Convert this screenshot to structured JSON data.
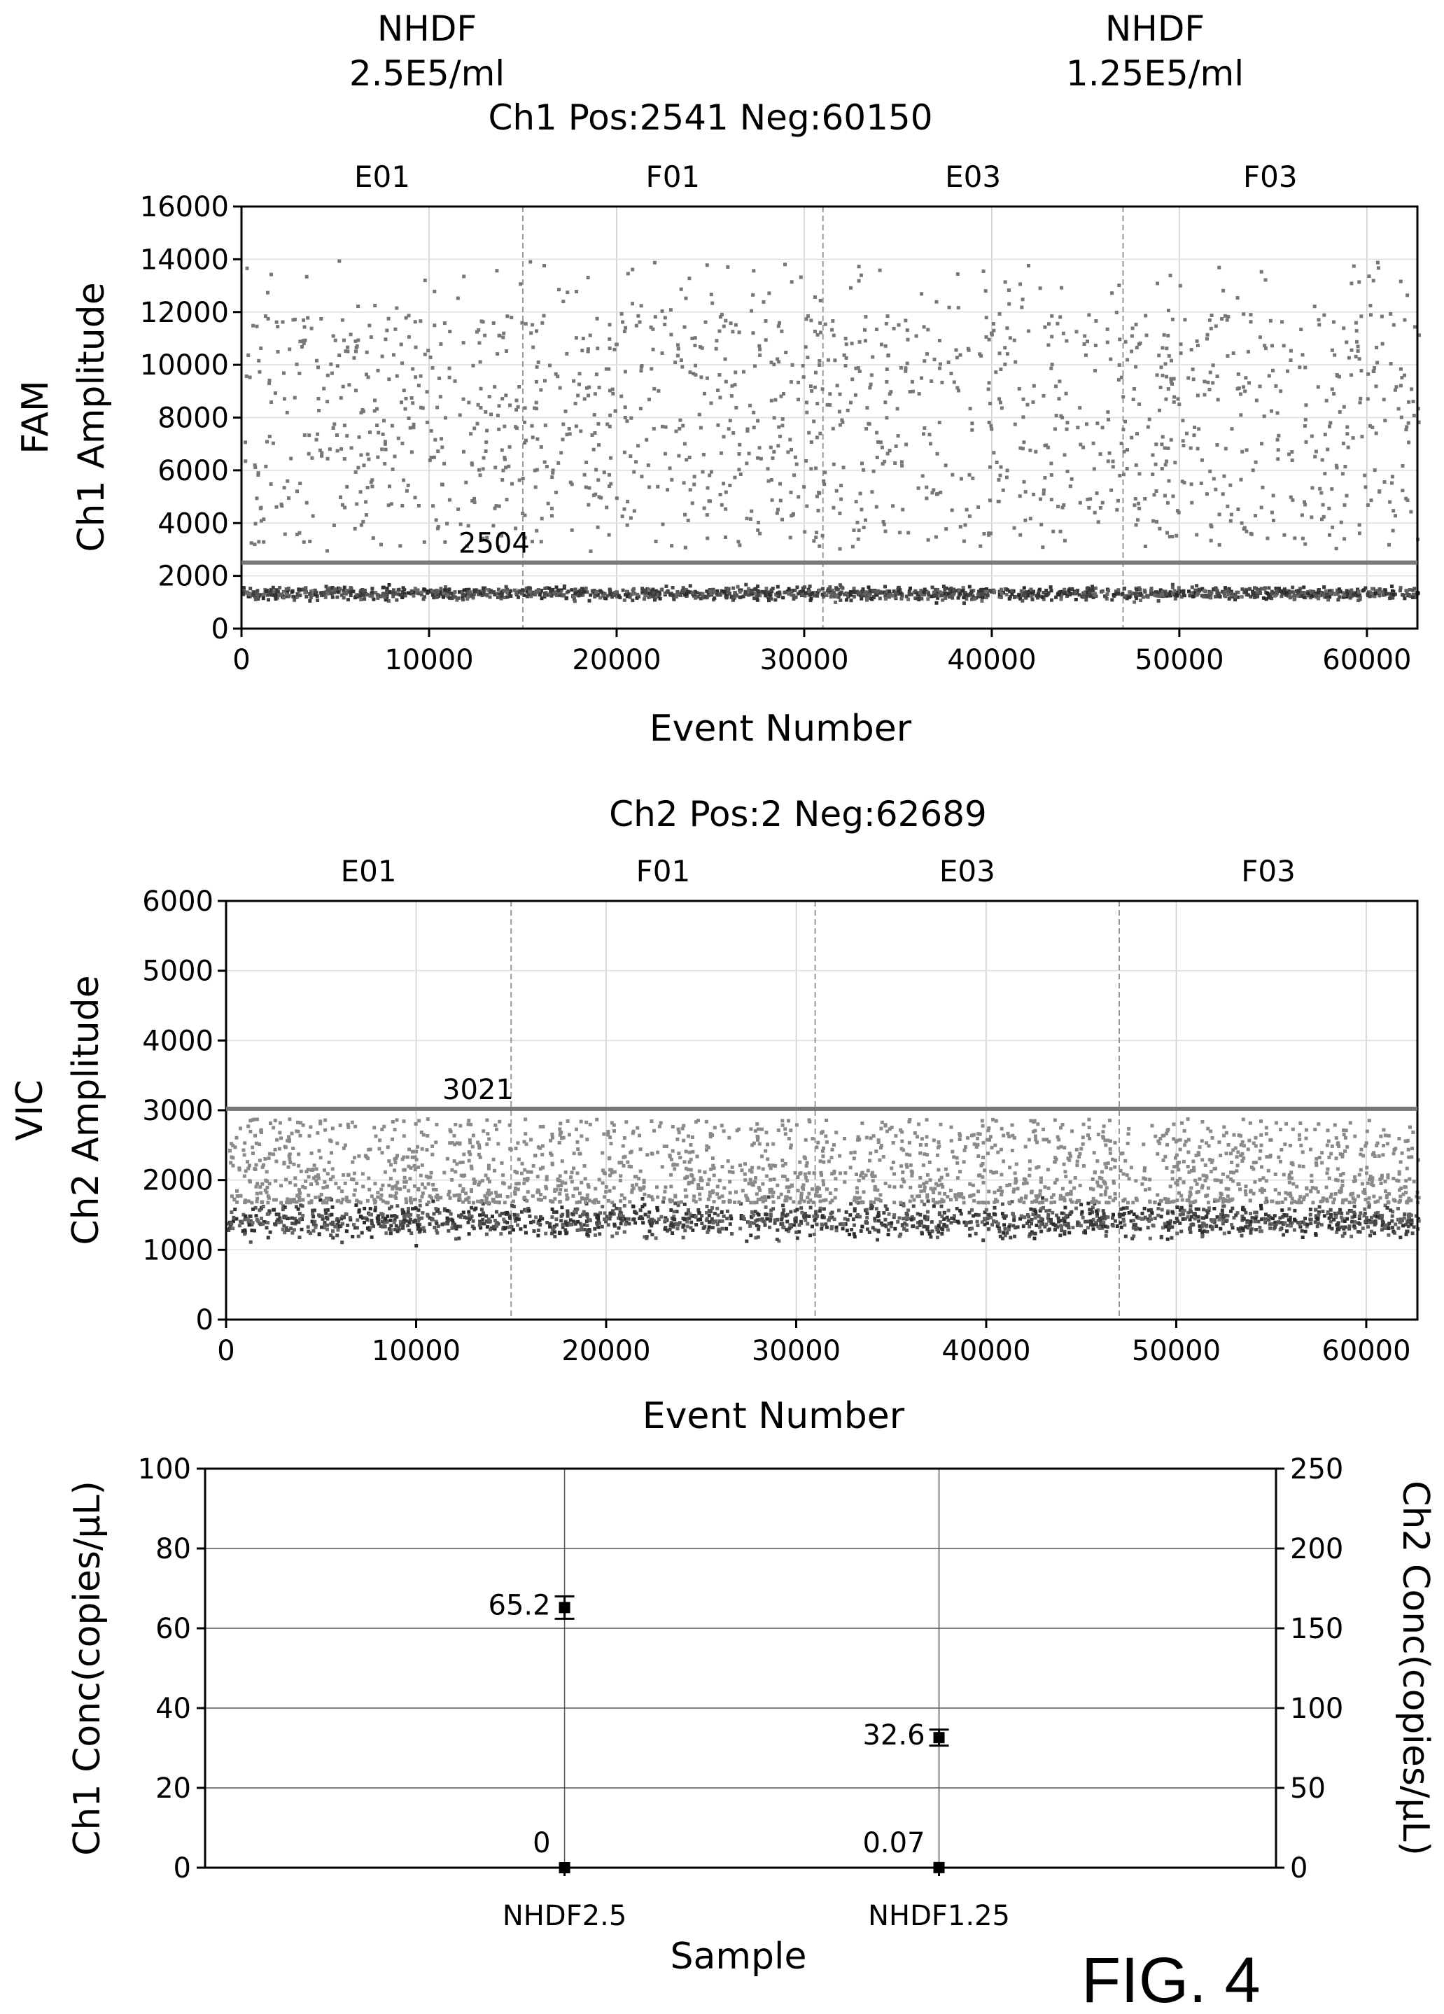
{
  "header": {
    "left": {
      "line1": "NHDF",
      "line2": "2.5E5/ml"
    },
    "right": {
      "line1": "NHDF",
      "line2": "1.25E5/ml"
    }
  },
  "figure_label": "FIG. 4",
  "chart_data": [
    {
      "type": "scatter",
      "title": "Ch1  Pos:2541  Neg:60150",
      "ylabel_channel": "FAM",
      "ylabel": "Ch1  Amplitude",
      "xlabel": "Event Number",
      "xlim": [
        0,
        62691
      ],
      "ylim": [
        0,
        16000
      ],
      "xticks": [
        0,
        10000,
        20000,
        30000,
        40000,
        50000,
        60000
      ],
      "yticks": [
        0,
        2000,
        4000,
        6000,
        8000,
        10000,
        12000,
        14000,
        16000
      ],
      "wells": [
        {
          "label": "E01",
          "start": 0,
          "end": 15000
        },
        {
          "label": "F01",
          "start": 15000,
          "end": 31000
        },
        {
          "label": "E03",
          "start": 31000,
          "end": 47000
        },
        {
          "label": "F03",
          "start": 47000,
          "end": 62691
        }
      ],
      "threshold": 2504,
      "threshold_label": "2504",
      "negative_band": {
        "center": 1400,
        "spread": 350
      },
      "positive_cluster": {
        "range": [
          3000,
          12000
        ],
        "count": 2541
      },
      "negatives": 60150
    },
    {
      "type": "scatter",
      "title": "Ch2  Pos:2  Neg:62689",
      "ylabel_channel": "VIC",
      "ylabel": "Ch2  Amplitude",
      "xlabel": "Event Number",
      "xlim": [
        0,
        62691
      ],
      "ylim": [
        0,
        6000
      ],
      "xticks": [
        0,
        10000,
        20000,
        30000,
        40000,
        50000,
        60000
      ],
      "yticks": [
        0,
        1000,
        2000,
        3000,
        4000,
        5000,
        6000
      ],
      "wells": [
        {
          "label": "E01",
          "start": 0,
          "end": 15000
        },
        {
          "label": "F01",
          "start": 15000,
          "end": 31000
        },
        {
          "label": "E03",
          "start": 31000,
          "end": 47000
        },
        {
          "label": "F03",
          "start": 47000,
          "end": 62691
        }
      ],
      "threshold": 3021,
      "threshold_label": "3021",
      "negative_band": {
        "center": 1450,
        "spread": 350
      },
      "upper_spread": [
        1700,
        2900
      ],
      "positives": 2,
      "negatives": 62689
    },
    {
      "type": "scatter",
      "xlabel": "Sample",
      "ylabel": "Ch1  Conc(copies/μL)",
      "ylabel_right": "Ch2  Conc(copies/μL)",
      "categories": [
        "NHDF2.5",
        "NHDF1.25"
      ],
      "ylim": [
        0,
        100
      ],
      "ylim_right": [
        0,
        250
      ],
      "yticks": [
        0,
        20,
        40,
        60,
        80,
        100
      ],
      "yticks_right": [
        0,
        50,
        100,
        150,
        200,
        250
      ],
      "series": [
        {
          "axis": "left",
          "values": [
            65.2,
            32.6
          ],
          "labels": [
            "65.2",
            "32.6"
          ],
          "error": [
            2.8,
            2.0
          ]
        },
        {
          "axis": "right",
          "values": [
            0,
            0.07
          ],
          "labels": [
            "0",
            "0.07"
          ]
        }
      ]
    }
  ]
}
